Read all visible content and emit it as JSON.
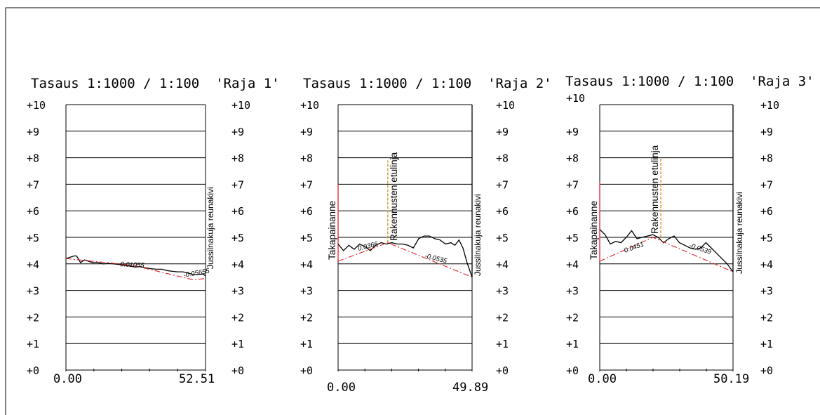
{
  "chart_data": [
    {
      "type": "line",
      "title": "Tasaus 1:1000 / 1:100  'Raja 1'",
      "y_ticks": [
        "+0",
        "+1",
        "+2",
        "+3",
        "+4",
        "+5",
        "+6",
        "+7",
        "+8",
        "+9",
        "+10"
      ],
      "ylim": [
        0,
        10
      ],
      "xlim": [
        0,
        52.51
      ],
      "x_start_label": "0.00",
      "x_end_label": "52.51",
      "right_label": "Jussilnakuja reunakivi",
      "left_label": "",
      "mid_label": "",
      "slope_labels": [
        "-0.01055",
        "-0.05655"
      ],
      "series": [
        {
          "role": "ground",
          "color": "#000000",
          "x": [
            0,
            1.5,
            3,
            4,
            5.5,
            7,
            8.5,
            10,
            12,
            14,
            16,
            18,
            20,
            22,
            24,
            26,
            28,
            30,
            32,
            34,
            36,
            38,
            40,
            42,
            44,
            46,
            48,
            50,
            51.5,
            52.51
          ],
          "y": [
            4.2,
            4.25,
            4.3,
            4.3,
            4.05,
            4.15,
            4.1,
            4.05,
            4.05,
            4.0,
            4.02,
            4.0,
            3.98,
            3.95,
            3.92,
            3.88,
            3.9,
            3.85,
            3.82,
            3.8,
            3.8,
            3.75,
            3.72,
            3.7,
            3.7,
            3.65,
            3.6,
            3.6,
            3.62,
            3.55
          ]
        },
        {
          "role": "design",
          "color": "#e0202a",
          "x": [
            0,
            25,
            48,
            52.51
          ],
          "y": [
            4.2,
            3.95,
            3.4,
            3.45
          ]
        }
      ],
      "vertical_markers": []
    },
    {
      "type": "line",
      "title": "Tasaus 1:1000 / 1:100  'Raja 2'",
      "y_ticks": [
        "+0",
        "+1",
        "+2",
        "+3",
        "+4",
        "+5",
        "+6",
        "+7",
        "+8",
        "+9",
        "+10"
      ],
      "ylim": [
        0,
        10
      ],
      "xlim": [
        0,
        49.89
      ],
      "x_start_label": "0.00",
      "x_end_label": "49.89",
      "right_label": "Jussilnakuja reunakivi",
      "left_label": "Takapainanne",
      "mid_label": "Rakennusten etulinja",
      "slope_labels": [
        "0.0366",
        "-0.0535"
      ],
      "series": [
        {
          "role": "ground",
          "color": "#000000",
          "x": [
            0,
            2,
            4,
            6,
            8,
            10,
            12,
            14,
            16,
            18,
            20,
            22,
            24,
            26,
            28,
            30,
            32,
            34,
            36,
            38,
            40,
            42,
            43.5,
            45,
            46.5,
            48,
            49.89
          ],
          "y": [
            4.75,
            4.5,
            4.7,
            4.55,
            4.75,
            4.65,
            4.5,
            4.7,
            4.8,
            4.75,
            4.8,
            4.75,
            4.75,
            4.7,
            4.6,
            4.95,
            5.05,
            5.05,
            4.95,
            4.9,
            4.75,
            4.8,
            4.7,
            4.9,
            4.6,
            4.05,
            3.5
          ]
        },
        {
          "role": "design",
          "color": "#e0202a",
          "x": [
            0,
            18.5,
            49.89
          ],
          "y": [
            4.1,
            4.8,
            3.5
          ]
        }
      ],
      "vertical_markers": [
        {
          "x": 0,
          "y_from": 4.1,
          "y_to": 7.0,
          "color": "#e0202a"
        },
        {
          "x": 18.5,
          "y_from": 4.8,
          "y_to": 7.9,
          "color": "#e08a1e"
        },
        {
          "x": 49.89,
          "y_from": 3.5,
          "y_to": 10,
          "color": "#000000"
        }
      ]
    },
    {
      "type": "line",
      "title": "Tasaus 1:1000 / 1:100  'Raja 3'",
      "y_ticks": [
        "+0",
        "+1",
        "+2",
        "+3",
        "+4",
        "+5",
        "+6",
        "+7",
        "+8",
        "+9",
        "+10"
      ],
      "ylim": [
        0,
        10
      ],
      "xlim": [
        0,
        50.19
      ],
      "x_start_label": "0.00",
      "x_end_label": "50.19",
      "right_label": "Jussilnakuja reunakivi",
      "left_label": "Takapainanne",
      "mid_label": "Rakennusten etulinja",
      "slope_labels": [
        "0.0451",
        "-0.0539"
      ],
      "series": [
        {
          "role": "ground",
          "color": "#000000",
          "x": [
            0,
            2,
            4,
            6,
            8,
            10,
            12,
            14,
            16,
            18,
            20,
            22,
            24,
            26,
            28,
            30,
            32,
            34,
            36,
            38,
            40,
            42,
            44,
            46,
            48,
            50.19
          ],
          "y": [
            5.3,
            5.1,
            4.75,
            4.85,
            4.8,
            5.0,
            5.25,
            4.95,
            5.0,
            5.05,
            5.1,
            5.0,
            4.8,
            4.95,
            5.05,
            4.8,
            4.7,
            4.6,
            4.55,
            4.6,
            4.8,
            4.6,
            4.4,
            4.2,
            4.0,
            3.7
          ]
        },
        {
          "role": "design",
          "color": "#e0202a",
          "x": [
            0,
            20,
            50.19
          ],
          "y": [
            4.1,
            5.0,
            3.7
          ]
        }
      ],
      "vertical_markers": [
        {
          "x": 0,
          "y_from": 4.1,
          "y_to": 7.1,
          "color": "#e0202a"
        },
        {
          "x": 23,
          "y_from": 5.0,
          "y_to": 8.0,
          "color": "#e08a1e"
        },
        {
          "x": 50.19,
          "y_from": 3.7,
          "y_to": 10,
          "color": "#000000"
        }
      ]
    }
  ]
}
